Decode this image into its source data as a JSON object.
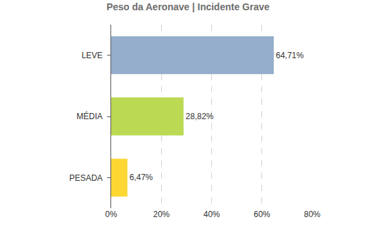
{
  "chart_data": {
    "type": "bar",
    "title": "Peso da Aeronave | Incidente Grave",
    "orientation": "horizontal",
    "categories": [
      "LEVE",
      "MÉDIA",
      "PESADA"
    ],
    "values": [
      64.71,
      28.82,
      6.47
    ],
    "value_labels": [
      "64,71%",
      "28,82%",
      "6,47%"
    ],
    "colors": [
      "#94aecb",
      "#bcd953",
      "#fdd835"
    ],
    "data_labels": true,
    "xlim": [
      0,
      80
    ],
    "xticks": [
      {
        "value": 0,
        "label": "0%"
      },
      {
        "value": 20,
        "label": "20%"
      },
      {
        "value": 40,
        "label": "40%"
      },
      {
        "value": 60,
        "label": "60%"
      },
      {
        "value": 80,
        "label": "80%"
      }
    ],
    "grid": true
  }
}
